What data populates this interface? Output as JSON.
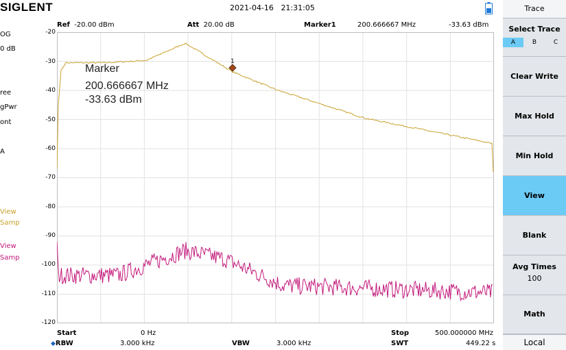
{
  "header": {
    "logo": "SIGLENT",
    "date": "2021-04-16",
    "time": "21:31:05"
  },
  "info": {
    "ref_label": "Ref",
    "ref_value": "-20.00 dBm",
    "att_label": "Att",
    "att_value": "20.00 dB",
    "marker_label": "Marker1",
    "marker_freq": "200.666667 MHz",
    "marker_level": "-33.63 dBm"
  },
  "left_column": {
    "items": [
      "OG",
      "0 dB",
      "ree",
      "gPwr",
      "ont",
      "A"
    ],
    "trace_a": [
      "View",
      "Samp"
    ],
    "trace_b": [
      "View",
      "Samp"
    ]
  },
  "y_axis": {
    "ticks": [
      "-20",
      "-30",
      "-40",
      "-50",
      "-60",
      "-70",
      "-80",
      "-90",
      "-100",
      "-110",
      "-120"
    ]
  },
  "marker_overlay": {
    "title": "Marker",
    "freq": "200.666667 MHz",
    "level": "-33.63 dBm",
    "index": "1"
  },
  "bottom": {
    "start_label": "Start",
    "start_value": "0 Hz",
    "stop_label": "Stop",
    "stop_value": "500.000000 MHz",
    "rbw_label": "RBW",
    "rbw_value": "3.000 kHz",
    "vbw_label": "VBW",
    "vbw_value": "3.000 kHz",
    "swt_label": "SWT",
    "swt_value": "449.22 s"
  },
  "side_panel": {
    "title": "Trace",
    "select_trace": "Select Trace",
    "trace_options": [
      "A",
      "B",
      "C"
    ],
    "selected_trace": "A",
    "buttons": [
      "Clear Write",
      "Max Hold",
      "Min Hold",
      "View",
      "Blank",
      "Avg Times",
      "Math"
    ],
    "avg_times_value": "100",
    "active_button": "View",
    "local": "Local"
  },
  "colors": {
    "trace_a": "#c8a02a",
    "trace_b": "#c2177a",
    "highlight": "#6ccbf5",
    "marker": "#a8481a",
    "battery": "#1e7ad8"
  }
}
